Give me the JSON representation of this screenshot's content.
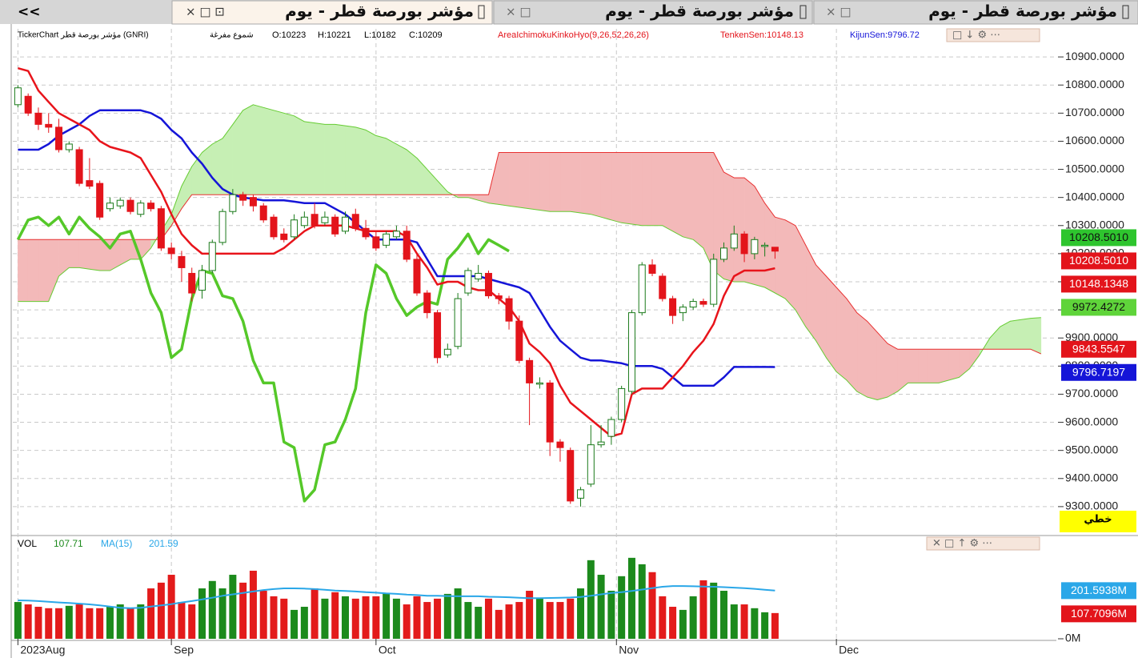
{
  "nav": "<<",
  "tabs": [
    {
      "title": "مؤشر بورصة قطر - يوم"
    },
    {
      "title": "مؤشر بورصة قطر - يوم"
    },
    {
      "title": "مؤشر بورصة قطر - يوم"
    }
  ],
  "scale_mode": "خطي",
  "chart_data": [
    {
      "type": "candlestick",
      "header": "TickerChart مؤشر بورصة قطر (GNRI)",
      "candle_style": "شموع مفرغة",
      "ohlc_labels": [
        "O:10223",
        "H:10221",
        "L:10182",
        "C:10209"
      ],
      "indicator": "AreaIchimokuKinkoHyo(9,26,52,26,26)",
      "tenkan_label": "TenkenSen:10148.13",
      "kijun_label": "KijunSen:9796.72",
      "xlim": [
        -0.5,
        101.5
      ],
      "xticks": [
        {
          "value": 0,
          "label": "2023Aug"
        },
        {
          "value": 15,
          "label": "Sep"
        },
        {
          "value": 35,
          "label": "Oct"
        },
        {
          "value": 58.5,
          "label": "Nov"
        },
        {
          "value": 80,
          "label": "Dec"
        }
      ],
      "ylim": [
        9200,
        11000
      ],
      "yticks": [
        {
          "value": 9300,
          "label": "9300.0000"
        },
        {
          "value": 9400,
          "label": "9400.0000"
        },
        {
          "value": 9500,
          "label": "9500.0000"
        },
        {
          "value": 9600,
          "label": "9600.0000"
        },
        {
          "value": 9700,
          "label": "9700.0000"
        },
        {
          "value": 9800,
          "label": "9800.0000"
        },
        {
          "value": 9900,
          "label": "9900.0000"
        },
        {
          "value": 10000,
          "label": "10000.0000"
        },
        {
          "value": 10100,
          "label": "10100.0000"
        },
        {
          "value": 10200,
          "label": "10200.0000"
        },
        {
          "value": 10300,
          "label": "10300.0000"
        },
        {
          "value": 10400,
          "label": "10400.0000"
        },
        {
          "value": 10500,
          "label": "10500.0000"
        },
        {
          "value": 10600,
          "label": "10600.0000"
        },
        {
          "value": 10700,
          "label": "10700.0000"
        },
        {
          "value": 10800,
          "label": "10800.0000"
        },
        {
          "value": 10900,
          "label": "10900.0000"
        }
      ],
      "grid": true,
      "up_color": "#1a7a1a",
      "down_color": "#e3141b",
      "open": [
        10730,
        10760,
        10700,
        10660,
        10650,
        10570,
        10570,
        10460,
        10450,
        10360,
        10370,
        10390,
        10340,
        10380,
        10360,
        10220,
        10190,
        10130,
        10070,
        10140,
        10240,
        10350,
        10410,
        10400,
        10370,
        10330,
        10270,
        10260,
        10300,
        10340,
        10310,
        10330,
        10280,
        10340,
        10290,
        10260,
        10230,
        10260,
        10280,
        10180,
        10060,
        9990,
        9840,
        9870,
        10060,
        10110,
        10130,
        10050,
        10040,
        9960,
        9820,
        9740,
        9740,
        9530,
        9500,
        9330,
        9380,
        9520,
        9550,
        9610,
        9710,
        9990,
        10160,
        10120,
        10040,
        9990,
        10010,
        10030,
        10020,
        10180,
        10220,
        10270,
        10200,
        10230,
        10223
      ],
      "high": [
        10800,
        10770,
        10720,
        10700,
        10680,
        10600,
        10580,
        10540,
        10460,
        10400,
        10400,
        10400,
        10390,
        10390,
        10370,
        10240,
        10210,
        10150,
        10160,
        10250,
        10360,
        10430,
        10420,
        10410,
        10380,
        10340,
        10290,
        10340,
        10350,
        10380,
        10350,
        10340,
        10350,
        10360,
        10320,
        10280,
        10280,
        10300,
        10300,
        10200,
        10070,
        10000,
        9880,
        10060,
        10150,
        10160,
        10140,
        10060,
        10050,
        9980,
        9830,
        9760,
        9750,
        9540,
        9510,
        9370,
        9590,
        9590,
        9620,
        9730,
        10000,
        10170,
        10180,
        10130,
        10050,
        10020,
        10040,
        10040,
        10200,
        10240,
        10300,
        10280,
        10260,
        10240,
        10221
      ],
      "low": [
        10720,
        10690,
        10640,
        10630,
        10560,
        10560,
        10440,
        10430,
        10320,
        10350,
        10360,
        10340,
        10330,
        10350,
        10210,
        10180,
        10100,
        10030,
        10040,
        10130,
        10230,
        10340,
        10370,
        10350,
        10310,
        10250,
        10240,
        10250,
        10290,
        10290,
        10300,
        10260,
        10270,
        10280,
        10250,
        10210,
        10220,
        10250,
        10170,
        10050,
        9970,
        9810,
        9830,
        9860,
        10050,
        10100,
        10040,
        10020,
        9930,
        9810,
        9590,
        9720,
        9480,
        9460,
        9310,
        9300,
        9370,
        9510,
        9520,
        9600,
        9700,
        9980,
        10120,
        10030,
        9950,
        9960,
        10000,
        10010,
        10010,
        10170,
        10210,
        10170,
        10180,
        10190,
        10182
      ],
      "close": [
        10790,
        10700,
        10660,
        10650,
        10570,
        10590,
        10450,
        10440,
        10330,
        10380,
        10390,
        10350,
        10380,
        10360,
        10220,
        10200,
        10150,
        10060,
        10140,
        10240,
        10350,
        10410,
        10390,
        10370,
        10320,
        10260,
        10250,
        10320,
        10330,
        10300,
        10330,
        10270,
        10330,
        10290,
        10260,
        10220,
        10270,
        10280,
        10180,
        10060,
        9990,
        9830,
        9860,
        10040,
        10140,
        10130,
        10050,
        10040,
        9960,
        9820,
        9740,
        9740,
        9530,
        9510,
        9320,
        9360,
        9520,
        9530,
        9610,
        9720,
        9990,
        10160,
        10130,
        10040,
        9980,
        10010,
        10030,
        10020,
        10180,
        10220,
        10270,
        10200,
        10250,
        10230,
        10209
      ],
      "tenkan": {
        "color": "#e8141b",
        "values": [
          10860,
          10850,
          10780,
          10740,
          10700,
          10680,
          10660,
          10640,
          10600,
          10580,
          10570,
          10560,
          10540,
          10480,
          10420,
          10340,
          10270,
          10230,
          10200,
          10200,
          10200,
          10200,
          10200,
          10200,
          10200,
          10200,
          10220,
          10250,
          10280,
          10300,
          10300,
          10300,
          10300,
          10290,
          10280,
          10280,
          10280,
          10280,
          10260,
          10200,
          10150,
          10090,
          10100,
          10100,
          10080,
          10070,
          10070,
          10040,
          10010,
          9960,
          9880,
          9850,
          9810,
          9730,
          9670,
          9640,
          9610,
          9580,
          9550,
          9560,
          9700,
          9720,
          9720,
          9720,
          9760,
          9800,
          9850,
          9890,
          9950,
          10050,
          10120,
          10140,
          10140,
          10140,
          10148.1348
        ]
      },
      "kijun": {
        "color": "#1515d8",
        "values": [
          10570,
          10570,
          10570,
          10590,
          10620,
          10640,
          10660,
          10690,
          10710,
          10710,
          10710,
          10710,
          10710,
          10700,
          10680,
          10640,
          10610,
          10560,
          10520,
          10470,
          10430,
          10410,
          10400,
          10395,
          10390,
          10390,
          10390,
          10385,
          10380,
          10380,
          10380,
          10360,
          10340,
          10310,
          10280,
          10250,
          10250,
          10250,
          10250,
          10240,
          10180,
          10120,
          10120,
          10120,
          10120,
          10120,
          10110,
          10100,
          10090,
          10080,
          10060,
          10000,
          9940,
          9890,
          9860,
          9830,
          9820,
          9820,
          9815,
          9810,
          9800,
          9800,
          9800,
          9790,
          9760,
          9730,
          9730,
          9730,
          9730,
          9760,
          9797,
          9797,
          9797,
          9797,
          9796.7197
        ]
      },
      "chikou": {
        "color": "#55c829",
        "values": [
          10250,
          10320,
          10330,
          10300,
          10330,
          10270,
          10330,
          10290,
          10260,
          10220,
          10270,
          10280,
          10180,
          10060,
          9990,
          9830,
          9860,
          10040,
          10140,
          10130,
          10050,
          10040,
          9960,
          9820,
          9740,
          9740,
          9530,
          9510,
          9320,
          9360,
          9520,
          9530,
          9610,
          9720,
          9990,
          10160,
          10130,
          10040,
          9980,
          10010,
          10030,
          10020,
          10180,
          10220,
          10270,
          10200,
          10250,
          10230,
          10209
        ]
      },
      "senkou_a": {
        "color": "#66cc33",
        "values": [
          10030,
          10030,
          10030,
          10030,
          10120,
          10150,
          10150,
          10145,
          10140,
          10140,
          10160,
          10180,
          10180,
          10220,
          10280,
          10340,
          10440,
          10510,
          10560,
          10590,
          10610,
          10660,
          10710,
          10730,
          10720,
          10710,
          10700,
          10690,
          10670,
          10665,
          10660,
          10660,
          10655,
          10650,
          10640,
          10620,
          10610,
          10590,
          10570,
          10540,
          10500,
          10460,
          10420,
          10400,
          10400,
          10390,
          10380,
          10375,
          10370,
          10365,
          10360,
          10355,
          10350,
          10350,
          10350,
          10345,
          10340,
          10330,
          10320,
          10310,
          10305,
          10300,
          10300,
          10300,
          10280,
          10260,
          10250,
          10220,
          10140,
          10110,
          10100,
          10100,
          10090,
          10080,
          10060,
          10040,
          10000,
          9940,
          9890,
          9830,
          9780,
          9750,
          9710,
          9690,
          9680,
          9690,
          9710,
          9740,
          9740,
          9740,
          9740,
          9750,
          9760,
          9790,
          9840,
          9900,
          9940,
          9960,
          9965,
          9970,
          9972.4272
        ]
      },
      "senkou_b": {
        "color": "#e83030",
        "values": [
          10250,
          10250,
          10250,
          10250,
          10250,
          10250,
          10250,
          10250,
          10250,
          10250,
          10250,
          10250,
          10250,
          10250,
          10250,
          10300,
          10360,
          10410,
          10410,
          10410,
          10410,
          10410,
          10410,
          10410,
          10410,
          10410,
          10410,
          10410,
          10410,
          10410,
          10410,
          10410,
          10410,
          10410,
          10410,
          10410,
          10410,
          10410,
          10410,
          10410,
          10410,
          10410,
          10410,
          10410,
          10410,
          10410,
          10410,
          10560,
          10560,
          10560,
          10560,
          10560,
          10560,
          10560,
          10560,
          10560,
          10560,
          10560,
          10560,
          10560,
          10560,
          10560,
          10560,
          10560,
          10560,
          10560,
          10560,
          10560,
          10560,
          10490,
          10470,
          10470,
          10440,
          10380,
          10330,
          10320,
          10300,
          10230,
          10160,
          10120,
          10080,
          10040,
          9990,
          9960,
          9920,
          9880,
          9860,
          9860,
          9860,
          9860,
          9860,
          9860,
          9860,
          9860,
          9860,
          9860,
          9860,
          9860,
          9860,
          9860,
          9843.5547
        ]
      },
      "cloud_up_color": "#c6efb4",
      "cloud_down_color": "#f3b9b9",
      "badges": [
        {
          "value": 10208.501,
          "label": "10208.5010",
          "color": "#2ec52e",
          "text_color": "#111"
        },
        {
          "value": 10208.501,
          "label": "10208.5010",
          "color": "#e3141b",
          "text_color": "#fff"
        },
        {
          "value": 10148.1348,
          "label": "10148.1348",
          "color": "#e3141b",
          "text_color": "#fff"
        },
        {
          "value": 9972.4272,
          "label": "9972.4272",
          "color": "#5fd43a",
          "text_color": "#111"
        },
        {
          "value": 9843.5547,
          "label": "9843.5547",
          "color": "#e3141b",
          "text_color": "#fff"
        },
        {
          "value": 9796.7197,
          "label": "9796.7197",
          "color": "#1515d8",
          "text_color": "#fff"
        }
      ]
    },
    {
      "type": "bar",
      "label": "VOL",
      "value_label": "107.71",
      "ma_label": "MA(15)",
      "ma_value_label": "201.59",
      "ylim": [
        0,
        372
      ],
      "yticks": [
        {
          "value": 0,
          "label": "0M"
        }
      ],
      "up_color": "#1c8a1c",
      "down_color": "#e31b1b",
      "values": [
        154,
        144,
        134,
        128,
        128,
        138,
        144,
        128,
        128,
        134,
        144,
        128,
        144,
        211,
        235,
        268,
        154,
        144,
        211,
        242,
        211,
        268,
        235,
        285,
        201,
        178,
        168,
        121,
        134,
        211,
        168,
        195,
        178,
        168,
        178,
        178,
        188,
        168,
        144,
        178,
        154,
        168,
        188,
        211,
        154,
        134,
        168,
        121,
        144,
        154,
        201,
        168,
        154,
        154,
        168,
        211,
        329,
        268,
        201,
        262,
        339,
        312,
        279,
        178,
        134,
        121,
        178,
        245,
        235,
        201,
        144,
        144,
        128,
        111,
        107.7096
      ],
      "ma": {
        "color": "#2aa7e8",
        "values": [
          161,
          160,
          158,
          155,
          152,
          150,
          147,
          144,
          140,
          135,
          130,
          128,
          130,
          135,
          140,
          145,
          152,
          158,
          165,
          172,
          180,
          186,
          192,
          198,
          204,
          208,
          211,
          211,
          210,
          208,
          205,
          202,
          200,
          198,
          195,
          193,
          190,
          188,
          185,
          183,
          180,
          180,
          179,
          178,
          178,
          178,
          176,
          175,
          174,
          172,
          170,
          170,
          171,
          172,
          173,
          175,
          180,
          186,
          192,
          195,
          200,
          206,
          212,
          218,
          221,
          221,
          220,
          219,
          218,
          216,
          214,
          212,
          209,
          205,
          201.5938
        ]
      },
      "badges": [
        {
          "value": 201.5938,
          "label": "201.5938M",
          "color": "#2aa7e8",
          "text_color": "#fff"
        },
        {
          "value": 107.7096,
          "label": "107.7096M",
          "color": "#e3141b",
          "text_color": "#fff"
        }
      ]
    }
  ]
}
